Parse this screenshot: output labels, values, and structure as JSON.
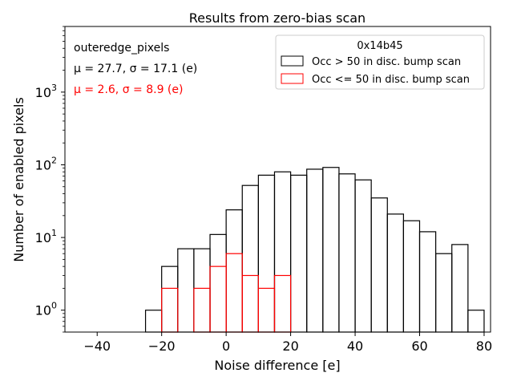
{
  "chart_data": {
    "type": "histogram",
    "title": "Results from zero-bias scan",
    "xlabel": "Noise difference [e]",
    "ylabel": "Number of enabled pixels",
    "xlim": [
      -50,
      82
    ],
    "ylim": [
      0.5,
      8000
    ],
    "yscale": "log",
    "grid": false,
    "x_ticks": [
      -40,
      -20,
      0,
      20,
      40,
      60,
      80
    ],
    "x_tick_labels": [
      "−40",
      "−20",
      "0",
      "20",
      "40",
      "60",
      "80"
    ],
    "y_ticks": [
      {
        "value": 1,
        "base": "10",
        "exp": "0"
      },
      {
        "value": 10,
        "base": "10",
        "exp": "1"
      },
      {
        "value": 100,
        "base": "10",
        "exp": "2"
      },
      {
        "value": 1000,
        "base": "10",
        "exp": "3"
      }
    ],
    "annotations": [
      {
        "text": "outeredge_pixels",
        "color": "#000000"
      },
      {
        "text": "μ = 27.7, σ = 17.1 (e)",
        "color": "#000000"
      },
      {
        "text": "μ = 2.6, σ = 8.9 (e)",
        "color": "#ff0000"
      }
    ],
    "legend": {
      "title": "0x14b45",
      "location": "top-right"
    },
    "series": [
      {
        "name": "Occ > 50 in disc. bump scan",
        "color": "#000000",
        "bin_edges": [
          -25,
          -20,
          -15,
          -10,
          -5,
          0,
          5,
          10,
          15,
          20,
          25,
          30,
          35,
          40,
          45,
          50,
          55,
          60,
          65,
          70,
          75,
          80
        ],
        "counts": [
          1,
          4,
          7,
          7,
          11,
          24,
          52,
          72,
          80,
          72,
          87,
          92,
          75,
          62,
          35,
          21,
          17,
          12,
          6,
          8,
          1
        ]
      },
      {
        "name": "Occ <= 50 in disc. bump scan",
        "color": "#ff0000",
        "bin_edges": [
          -20,
          -15,
          -10,
          -5,
          0,
          5,
          10,
          15,
          20
        ],
        "counts": [
          2,
          0,
          2,
          4,
          6,
          3,
          2,
          3
        ]
      }
    ]
  }
}
